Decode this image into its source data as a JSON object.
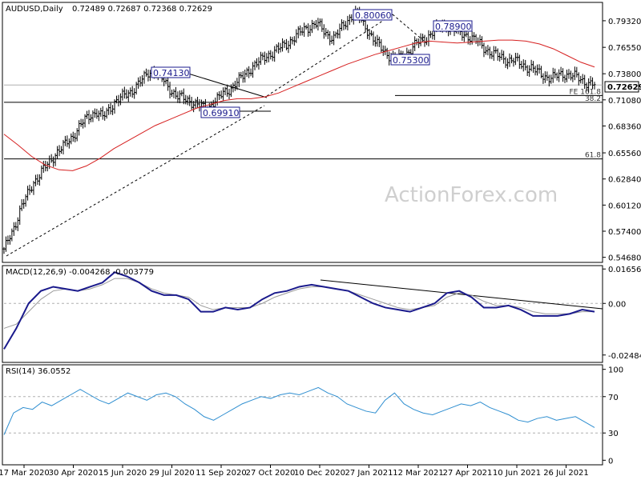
{
  "chart_data": [
    {
      "type": "ohlc",
      "title": "AUDUSD,Daily",
      "ohlc_header": "0.72489 0.72687 0.72368 0.72629",
      "ylim": [
        0.5415,
        0.8123
      ],
      "y_ticks": [
        "0.79320",
        "0.76550",
        "0.73800",
        "0.71080",
        "0.68360",
        "0.65560",
        "0.62840",
        "0.60120",
        "0.57400",
        "0.54680"
      ],
      "y_tick_values": [
        0.7932,
        0.7655,
        0.738,
        0.7108,
        0.6836,
        0.6556,
        0.6284,
        0.6012,
        0.574,
        0.5468
      ],
      "x_ticks": [
        "17 Mar 2020",
        "30 Apr 2020",
        "15 Jun 2020",
        "29 Jul 2020",
        "11 Sep 2020",
        "27 Oct 2020",
        "10 Dec 2020",
        "27 Jan 2021",
        "12 Mar 2021",
        "27 Apr 2021",
        "10 Jun 2021",
        "26 Jul 2021"
      ],
      "current_price": "0.72629",
      "price_path": [
        [
          0.553,
          0.57,
          0.582,
          0.598,
          0.612,
          0.625,
          0.63,
          0.64,
          0.648,
          0.655
        ],
        [
          0.66,
          0.668,
          0.674,
          0.682,
          0.69,
          0.696,
          0.698,
          0.692,
          0.7,
          0.708
        ],
        [
          0.712,
          0.716,
          0.72,
          0.726,
          0.732,
          0.74,
          0.741,
          0.735,
          0.727,
          0.72
        ],
        [
          0.714,
          0.712,
          0.71,
          0.707,
          0.704,
          0.7,
          0.708,
          0.712,
          0.718,
          0.722
        ],
        [
          0.728,
          0.733,
          0.74,
          0.746,
          0.75,
          0.755,
          0.759,
          0.762,
          0.766,
          0.77
        ],
        [
          0.775,
          0.78,
          0.785,
          0.788,
          0.79,
          0.784,
          0.778,
          0.775,
          0.783,
          0.792
        ],
        [
          0.798,
          0.8006,
          0.79,
          0.782,
          0.772,
          0.765,
          0.76,
          0.755,
          0.7535,
          0.756
        ],
        [
          0.762,
          0.768,
          0.772,
          0.776,
          0.781,
          0.7855,
          0.789,
          0.786,
          0.783,
          0.78
        ],
        [
          0.778,
          0.774,
          0.77,
          0.765,
          0.76,
          0.757,
          0.755,
          0.752,
          0.752,
          0.749
        ],
        [
          0.746,
          0.744,
          0.74,
          0.737,
          0.734,
          0.734,
          0.737,
          0.738,
          0.736,
          0.734
        ],
        [
          0.731,
          0.728,
          0.7263
        ]
      ],
      "moving_average": [
        0.675,
        0.664,
        0.652,
        0.643,
        0.638,
        0.637,
        0.642,
        0.65,
        0.66,
        0.668,
        0.676,
        0.684,
        0.69,
        0.696,
        0.702,
        0.706,
        0.71,
        0.712,
        0.712,
        0.714,
        0.718,
        0.724,
        0.73,
        0.736,
        0.742,
        0.748,
        0.753,
        0.758,
        0.762,
        0.766,
        0.77,
        0.772,
        0.771,
        0.77,
        0.771,
        0.772,
        0.773,
        0.773,
        0.772,
        0.769,
        0.764,
        0.757,
        0.75,
        0.745
      ],
      "annotations": [
        {
          "label": "0.80060",
          "value": 0.8006
        },
        {
          "label": "0.78900",
          "value": 0.789
        },
        {
          "label": "0.75300",
          "value": 0.753
        },
        {
          "label": "0.74130",
          "value": 0.7413
        },
        {
          "label": "0.69910",
          "value": 0.6991
        }
      ],
      "levels": [
        {
          "label": "FE 161.8",
          "value": 0.7153
        },
        {
          "label": "38.2",
          "value": 0.7082
        },
        {
          "label": "61.8",
          "value": 0.6493
        }
      ],
      "watermark": "ActionForex.com"
    },
    {
      "type": "line",
      "title": "MACD(12,26,9) -0.004268 -0.003779",
      "ylim": [
        -0.0284,
        0.0182
      ],
      "y_ticks": [
        "0.016567",
        "0.00",
        "-0.02484"
      ],
      "y_tick_values": [
        0.016567,
        0.0,
        -0.02484
      ],
      "series": [
        {
          "values": [
            -0.022,
            -0.012,
            0.0,
            0.006,
            0.008,
            0.007,
            0.006,
            0.008,
            0.01,
            0.015,
            0.013,
            0.01,
            0.006,
            0.004,
            0.004,
            0.002,
            -0.004,
            -0.004,
            -0.002,
            -0.003,
            -0.002,
            0.002,
            0.005,
            0.006,
            0.008,
            0.009,
            0.008,
            0.007,
            0.006,
            0.003,
            0.0,
            -0.002,
            -0.003,
            -0.004,
            -0.002,
            0.0,
            0.005,
            0.006,
            0.003,
            -0.002,
            -0.002,
            -0.001,
            -0.003,
            -0.006,
            -0.006,
            -0.006,
            -0.005,
            -0.003,
            -0.004
          ]
        },
        {
          "values": [
            -0.012,
            -0.01,
            -0.004,
            0.002,
            0.006,
            0.007,
            0.006,
            0.007,
            0.009,
            0.012,
            0.012,
            0.01,
            0.007,
            0.005,
            0.004,
            0.003,
            -0.001,
            -0.003,
            -0.002,
            -0.002,
            -0.002,
            0.0,
            0.003,
            0.005,
            0.007,
            0.008,
            0.008,
            0.007,
            0.006,
            0.004,
            0.002,
            0.0,
            -0.002,
            -0.003,
            -0.002,
            -0.001,
            0.003,
            0.005,
            0.004,
            0.001,
            -0.001,
            -0.001,
            -0.002,
            -0.004,
            -0.005,
            -0.005,
            -0.005,
            -0.004,
            -0.004
          ]
        }
      ]
    },
    {
      "type": "line",
      "title": "RSI(14) 36.0552",
      "ylim": [
        -5,
        105
      ],
      "y_ticks": [
        "100",
        "70",
        "30",
        "0"
      ],
      "y_tick_values": [
        100,
        70,
        30,
        0
      ],
      "series": [
        {
          "values": [
            28,
            52,
            58,
            56,
            64,
            60,
            66,
            72,
            78,
            72,
            66,
            62,
            68,
            74,
            70,
            66,
            72,
            74,
            70,
            62,
            56,
            48,
            44,
            50,
            56,
            62,
            66,
            70,
            68,
            72,
            74,
            72,
            76,
            80,
            74,
            70,
            62,
            58,
            54,
            52,
            66,
            74,
            62,
            56,
            52,
            50,
            54,
            58,
            62,
            60,
            64,
            58,
            54,
            50,
            44,
            42,
            46,
            48,
            44,
            46,
            48,
            42,
            36
          ]
        }
      ]
    }
  ]
}
